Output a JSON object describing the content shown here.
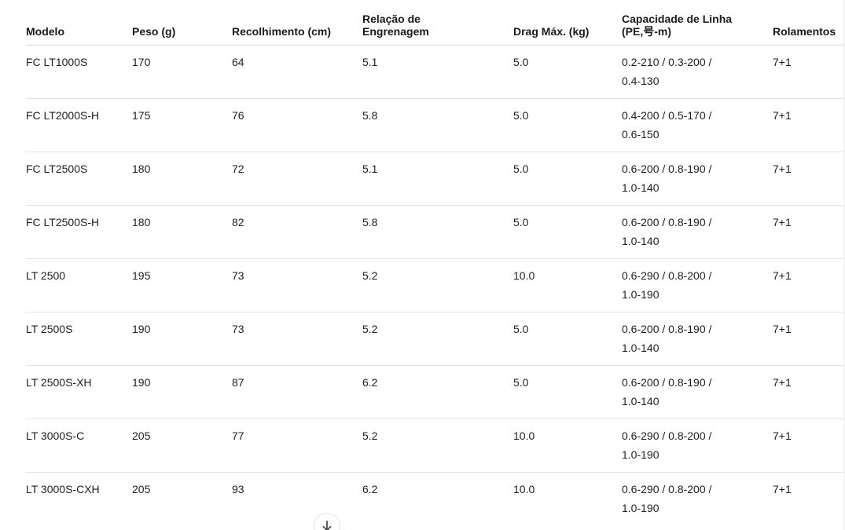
{
  "table": {
    "columns": [
      {
        "key": "model",
        "label": "Modelo"
      },
      {
        "key": "weight",
        "label": "Peso (g)"
      },
      {
        "key": "retrieve",
        "label": "Recolhimento (cm)"
      },
      {
        "key": "gear_ratio",
        "label": "Relação de\nEngrenagem"
      },
      {
        "key": "max_drag",
        "label": "Drag Máx. (kg)"
      },
      {
        "key": "line_capacity",
        "label": "Capacidade de Linha\n(PE,号-m)"
      },
      {
        "key": "bearings",
        "label": "Rolamentos"
      }
    ],
    "rows": [
      {
        "model": "FC LT1000S",
        "weight": "170",
        "retrieve": "64",
        "gear_ratio": "5.1",
        "max_drag": "5.0",
        "line_capacity": "0.2-210 / 0.3-200 /\n0.4-130",
        "bearings": "7+1"
      },
      {
        "model": "FC LT2000S-H",
        "weight": "175",
        "retrieve": "76",
        "gear_ratio": "5.8",
        "max_drag": "5.0",
        "line_capacity": "0.4-200 / 0.5-170 /\n0.6-150",
        "bearings": "7+1"
      },
      {
        "model": "FC LT2500S",
        "weight": "180",
        "retrieve": "72",
        "gear_ratio": "5.1",
        "max_drag": "5.0",
        "line_capacity": "0.6-200 / 0.8-190 /\n1.0-140",
        "bearings": "7+1"
      },
      {
        "model": "FC LT2500S-H",
        "weight": "180",
        "retrieve": "82",
        "gear_ratio": "5.8",
        "max_drag": "5.0",
        "line_capacity": "0.6-200 / 0.8-190 /\n1.0-140",
        "bearings": "7+1"
      },
      {
        "model": "LT 2500",
        "weight": "195",
        "retrieve": "73",
        "gear_ratio": "5.2",
        "max_drag": "10.0",
        "line_capacity": "0.6-290 / 0.8-200 /\n1.0-190",
        "bearings": "7+1"
      },
      {
        "model": "LT 2500S",
        "weight": "190",
        "retrieve": "73",
        "gear_ratio": "5.2",
        "max_drag": "5.0",
        "line_capacity": "0.6-200 / 0.8-190 /\n1.0-140",
        "bearings": "7+1"
      },
      {
        "model": "LT 2500S-XH",
        "weight": "190",
        "retrieve": "87",
        "gear_ratio": "6.2",
        "max_drag": "5.0",
        "line_capacity": "0.6-200 / 0.8-190 /\n1.0-140",
        "bearings": "7+1"
      },
      {
        "model": "LT 3000S-C",
        "weight": "205",
        "retrieve": "77",
        "gear_ratio": "5.2",
        "max_drag": "10.0",
        "line_capacity": "0.6-290 / 0.8-200 /\n1.0-190",
        "bearings": "7+1"
      },
      {
        "model": "LT 3000S-CXH",
        "weight": "205",
        "retrieve": "93",
        "gear_ratio": "6.2",
        "max_drag": "10.0",
        "line_capacity": "0.6-290 / 0.8-200 /\n1.0-190",
        "bearings": "7+1"
      }
    ]
  },
  "scroll_button": {
    "icon": "arrow-down"
  },
  "colors": {
    "background": "#ffffff",
    "text": "#1a1a1a",
    "header_divider": "#d8d8d8",
    "row_divider": "#e4e4e4",
    "button_border": "#e4e4e4",
    "button_arrow": "#4a4a4a"
  }
}
